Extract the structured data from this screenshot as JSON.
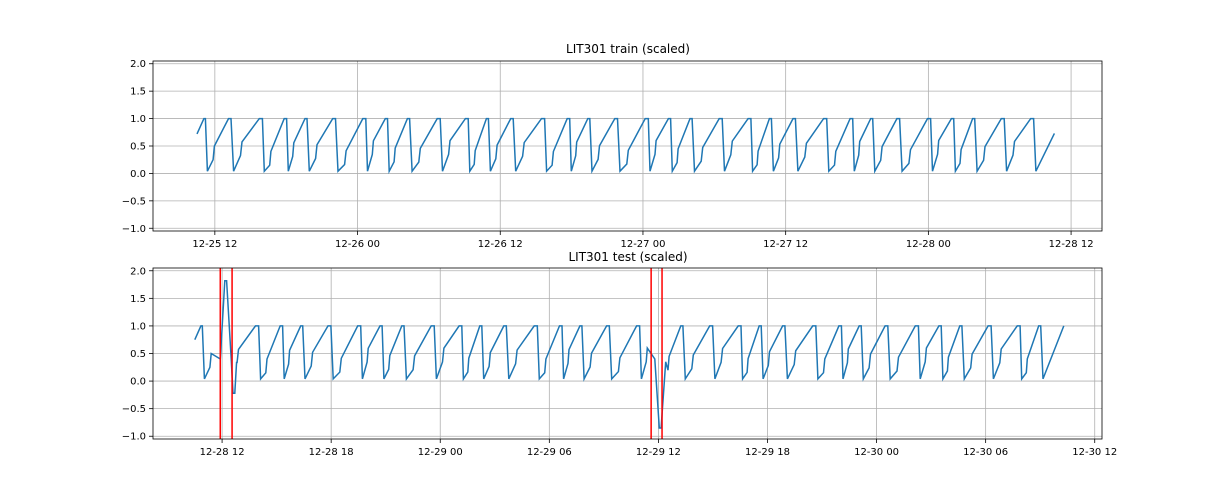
{
  "figure": {
    "background": "#ffffff",
    "series_color": "#1f77b4",
    "marker_color": "#ff0000",
    "grid_color": "#b0b0b0"
  },
  "chart_data": [
    {
      "type": "line",
      "title": "LIT301 train (scaled)",
      "xlabel": "",
      "ylabel": "",
      "ylim": [
        -1.05,
        2.05
      ],
      "xlim_hours": [
        -5.2,
        74.6
      ],
      "grid": true,
      "yticks": [
        "2.0",
        "1.5",
        "1.0",
        "0.5",
        "0.0",
        "−0.5",
        "−1.0"
      ],
      "ytick_values": [
        2.0,
        1.5,
        1.0,
        0.5,
        0.0,
        -0.5,
        -1.0
      ],
      "xticks": [
        "12-25 12",
        "12-26 00",
        "12-26 12",
        "12-27 00",
        "12-27 12",
        "12-28 00",
        "12-28 12"
      ],
      "xtick_hours": [
        0,
        12,
        24,
        36,
        48,
        60,
        72
      ],
      "x_start": "12-25 12",
      "series": [
        {
          "values_desc": "sawtooth tank level cycling between ~0.0 and ~1.0",
          "start_hour": -1.5,
          "end_hour": 70.6,
          "cycle_hours": 2.4,
          "min": 0.02,
          "max": 1.0,
          "start_value": 0.72,
          "end_value": 0.73
        }
      ],
      "markers": []
    },
    {
      "type": "line",
      "title": "LIT301 test (scaled)",
      "xlabel": "",
      "ylabel": "",
      "ylim": [
        -1.05,
        2.05
      ],
      "xlim_hours": [
        -3.8,
        48.4
      ],
      "grid": true,
      "yticks": [
        "2.0",
        "1.5",
        "1.0",
        "0.5",
        "0.0",
        "−0.5",
        "−1.0"
      ],
      "ytick_values": [
        2.0,
        1.5,
        1.0,
        0.5,
        0.0,
        -0.5,
        -1.0
      ],
      "xticks": [
        "12-28 12",
        "12-28 18",
        "12-29 00",
        "12-29 06",
        "12-29 12",
        "12-29 18",
        "12-30 00",
        "12-30 06",
        "12-30 12"
      ],
      "xtick_hours": [
        0,
        6,
        12,
        18,
        24,
        30,
        36,
        42,
        48
      ],
      "x_start": "12-28 12",
      "series": [
        {
          "values_desc": "sawtooth tank level cycling between ~0.0 and ~1.0 with anomalies",
          "start_hour": -1.5,
          "end_hour": 46.3,
          "cycle_hours": 1.55,
          "min": 0.02,
          "max": 1.0,
          "start_value": 0.75,
          "end_value": 1.0,
          "anomalies": [
            {
              "start_hour": -0.1,
              "end_hour": 0.5,
              "peak": 1.82
            },
            {
              "start_hour": 0.5,
              "end_hour": 0.8,
              "trough": -0.22
            },
            {
              "start_hour": 23.8,
              "end_hour": 24.4,
              "trough": -0.85
            }
          ]
        }
      ],
      "markers": [
        {
          "hour": -0.1
        },
        {
          "hour": 0.55
        },
        {
          "hour": 23.6
        },
        {
          "hour": 24.2
        }
      ]
    }
  ]
}
